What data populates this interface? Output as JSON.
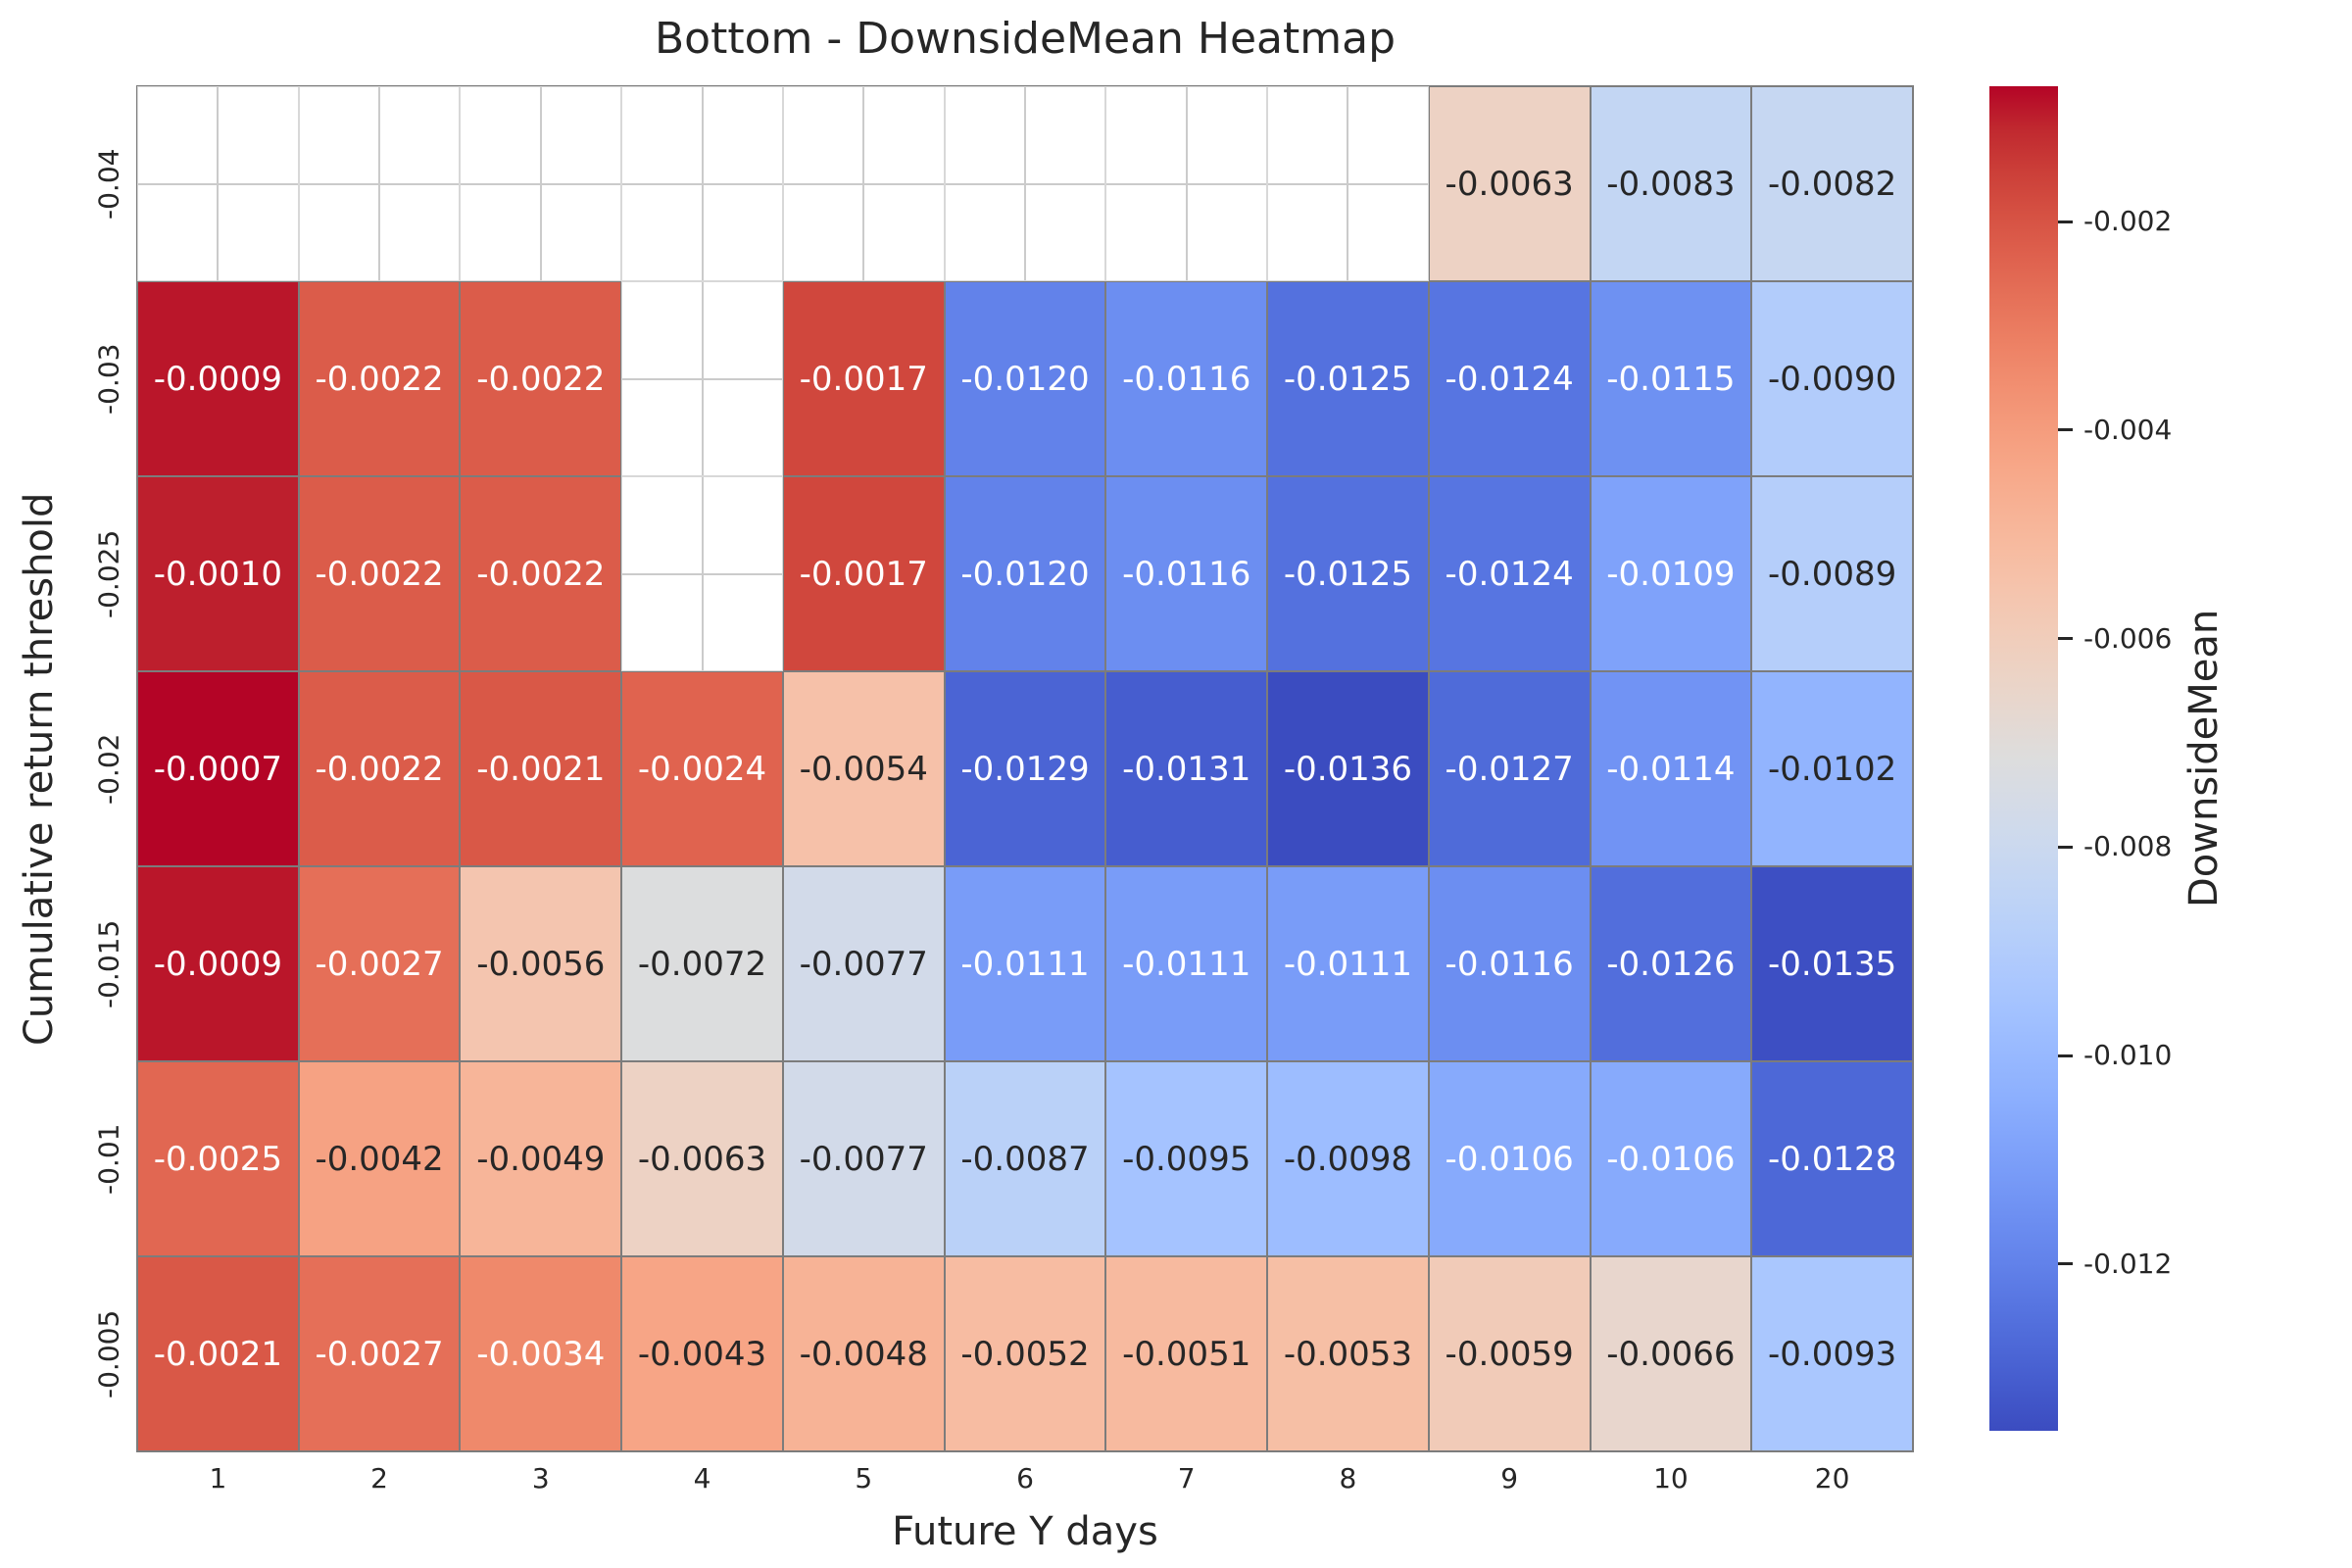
{
  "chart_data": {
    "type": "heatmap",
    "title": "Bottom - DownsideMean Heatmap",
    "xlabel": "Future Y days",
    "ylabel": "Cumulative return threshold",
    "colorbar_label": "DownsideMean",
    "colormap": "coolwarm",
    "grid": "on",
    "x_categories": [
      "1",
      "2",
      "3",
      "4",
      "5",
      "6",
      "7",
      "8",
      "9",
      "10",
      "20"
    ],
    "y_categories": [
      "-0.04",
      "-0.03",
      "-0.025",
      "-0.02",
      "-0.015",
      "-0.01",
      "-0.005"
    ],
    "values": [
      [
        null,
        null,
        null,
        null,
        null,
        null,
        null,
        null,
        -0.0063,
        -0.0083,
        -0.0082
      ],
      [
        -0.0009,
        -0.0022,
        -0.0022,
        null,
        -0.0017,
        -0.012,
        -0.0116,
        -0.0125,
        -0.0124,
        -0.0115,
        -0.009
      ],
      [
        -0.001,
        -0.0022,
        -0.0022,
        null,
        -0.0017,
        -0.012,
        -0.0116,
        -0.0125,
        -0.0124,
        -0.0109,
        -0.0089
      ],
      [
        -0.0007,
        -0.0022,
        -0.0021,
        -0.0024,
        -0.0054,
        -0.0129,
        -0.0131,
        -0.0136,
        -0.0127,
        -0.0114,
        -0.0102
      ],
      [
        -0.0009,
        -0.0027,
        -0.0056,
        -0.0072,
        -0.0077,
        -0.0111,
        -0.0111,
        -0.0111,
        -0.0116,
        -0.0126,
        -0.0135
      ],
      [
        -0.0025,
        -0.0042,
        -0.0049,
        -0.0063,
        -0.0077,
        -0.0087,
        -0.0095,
        -0.0098,
        -0.0106,
        -0.0106,
        -0.0128
      ],
      [
        -0.0021,
        -0.0027,
        -0.0034,
        -0.0043,
        -0.0048,
        -0.0052,
        -0.0051,
        -0.0053,
        -0.0059,
        -0.0066,
        -0.0093
      ]
    ],
    "value_decimals": 4,
    "colorbar_ticks": [
      "-0.002",
      "-0.004",
      "-0.006",
      "-0.008",
      "-0.010",
      "-0.012"
    ],
    "annotation_text_colors": {
      "light": "#ffffff",
      "dark": "#262626"
    }
  }
}
